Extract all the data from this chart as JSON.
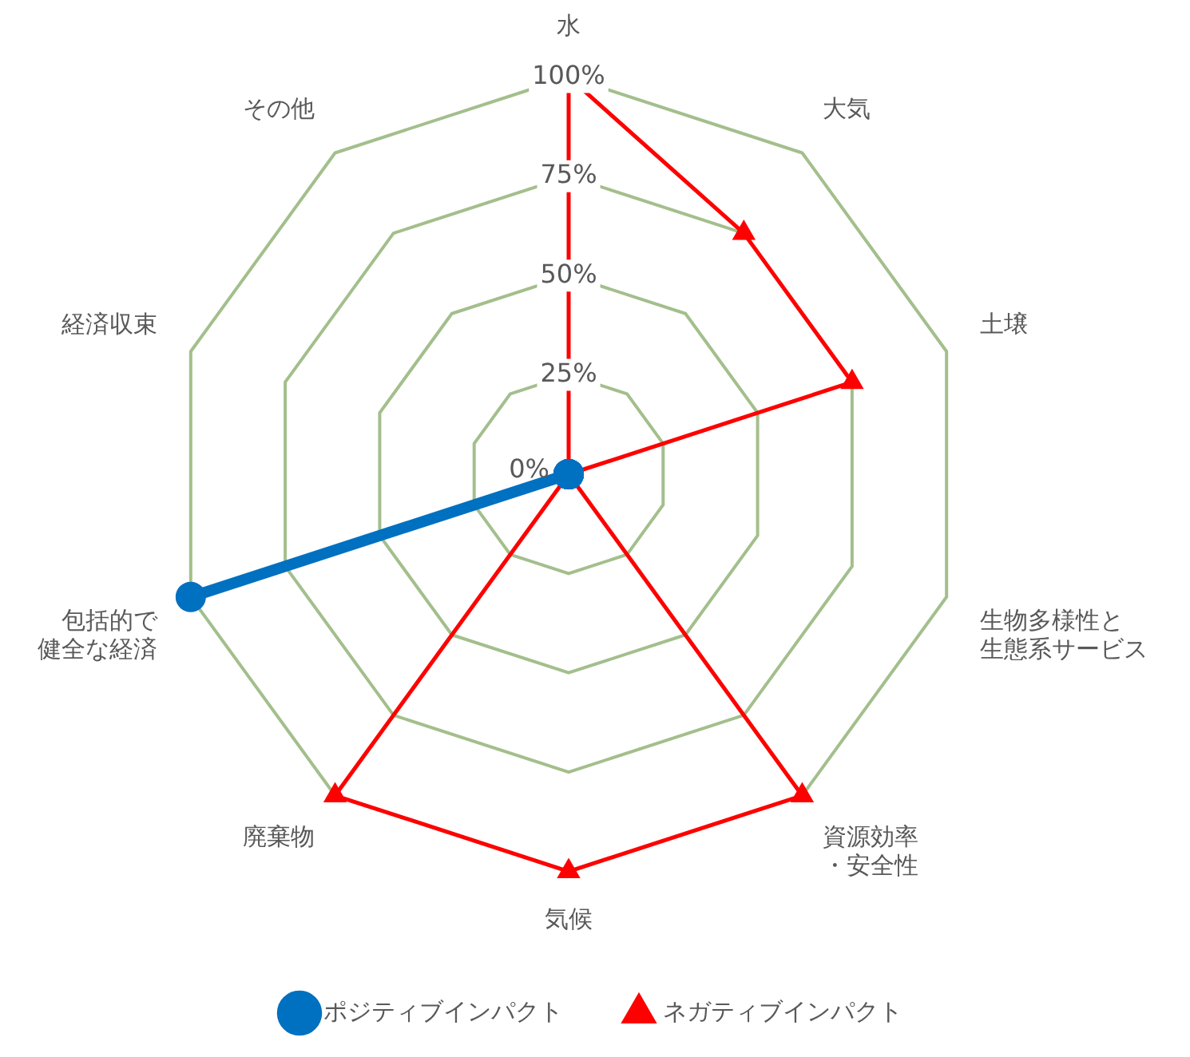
{
  "chart_data": {
    "type": "radar",
    "categories": [
      "水",
      "大気",
      "土壌",
      "生物多様性と生態系サービス",
      "資源効率・安全性",
      "気候",
      "廃棄物",
      "包括的で健全な経済",
      "経済収束",
      "その他"
    ],
    "series": [
      {
        "name": "ポジティブインパクト",
        "color": "#0070c0",
        "marker": "circle",
        "values": [
          0,
          0,
          0,
          0,
          0,
          0,
          0,
          100,
          0,
          0
        ]
      },
      {
        "name": "ネガティブインパクト",
        "color": "#ff0000",
        "marker": "triangle",
        "values": [
          100,
          75,
          75,
          0,
          100,
          100,
          100,
          0,
          0,
          0
        ]
      }
    ],
    "ylim": [
      0,
      100
    ],
    "yticks": [
      {
        "value": 0,
        "label": "0%"
      },
      {
        "value": 25,
        "label": "25%"
      },
      {
        "value": 50,
        "label": "50%"
      },
      {
        "value": 75,
        "label": "75%"
      },
      {
        "value": 100,
        "label": "100%"
      }
    ],
    "grid": true,
    "legend": "bottom"
  }
}
